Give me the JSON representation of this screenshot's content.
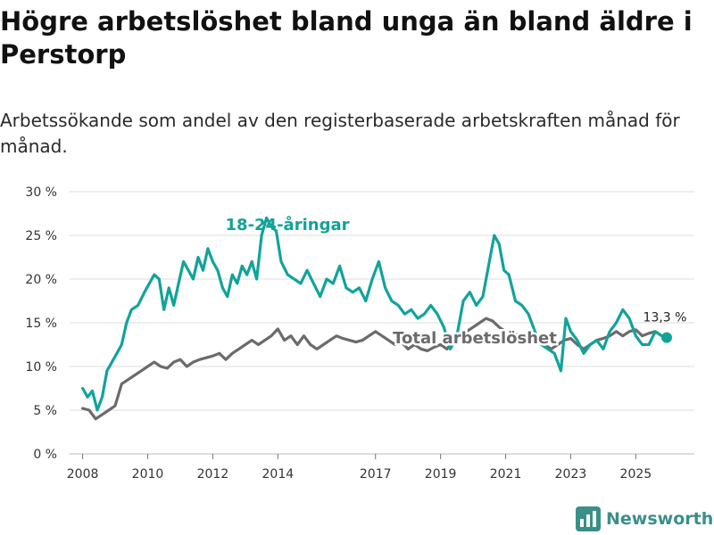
{
  "page": {
    "title": "Högre arbetslöshet bland unga än bland äldre i Perstorp",
    "subtitle": "Arbetssökande som andel av den registerbaserade arbetskraften månad för månad.",
    "brand": "Newsworthy"
  },
  "colors": {
    "youth": "#11a39a",
    "total": "#6b6b6b",
    "grid": "#dddddd",
    "brand": "#3b8f89"
  },
  "chart_data": {
    "type": "line",
    "title": "Högre arbetslöshet bland unga än bland äldre i Perstorp",
    "subtitle": "Arbetssökande som andel av den registerbaserade arbetskraften månad för månad.",
    "xlabel": "",
    "ylabel": "",
    "xlim": [
      2007.6,
      2026.8
    ],
    "ylim": [
      0,
      30
    ],
    "y_ticks": [
      0,
      5,
      10,
      15,
      20,
      25,
      30
    ],
    "y_tick_labels": [
      "0 %",
      "5 %",
      "10 %",
      "15 %",
      "20 %",
      "25 %",
      "30 %"
    ],
    "x_ticks": [
      2008,
      2010,
      2012,
      2014,
      2017,
      2019,
      2021,
      2023,
      2025
    ],
    "x_tick_labels": [
      "2008",
      "2010",
      "2012",
      "2014",
      "2017",
      "2019",
      "2021",
      "2023",
      "2025"
    ],
    "end_label": "13,3 %",
    "series": [
      {
        "name": "18-24-åringar",
        "x": [
          2008.0,
          2008.15,
          2008.3,
          2008.45,
          2008.6,
          2008.75,
          2008.9,
          2009.05,
          2009.2,
          2009.35,
          2009.5,
          2009.7,
          2009.9,
          2010.05,
          2010.2,
          2010.35,
          2010.5,
          2010.65,
          2010.8,
          2010.95,
          2011.1,
          2011.25,
          2011.4,
          2011.55,
          2011.7,
          2011.85,
          2012.0,
          2012.15,
          2012.3,
          2012.45,
          2012.6,
          2012.75,
          2012.9,
          2013.05,
          2013.2,
          2013.35,
          2013.5,
          2013.65,
          2013.8,
          2013.95,
          2014.1,
          2014.3,
          2014.5,
          2014.7,
          2014.9,
          2015.1,
          2015.3,
          2015.5,
          2015.7,
          2015.9,
          2016.1,
          2016.3,
          2016.5,
          2016.7,
          2016.9,
          2017.1,
          2017.3,
          2017.5,
          2017.7,
          2017.9,
          2018.1,
          2018.3,
          2018.5,
          2018.7,
          2018.9,
          2019.1,
          2019.3,
          2019.5,
          2019.7,
          2019.9,
          2020.1,
          2020.3,
          2020.5,
          2020.65,
          2020.8,
          2020.95,
          2021.1,
          2021.3,
          2021.5,
          2021.7,
          2021.9,
          2022.1,
          2022.3,
          2022.5,
          2022.7,
          2022.85,
          2023.0,
          2023.2,
          2023.4,
          2023.6,
          2023.8,
          2024.0,
          2024.2,
          2024.4,
          2024.6,
          2024.8,
          2025.0,
          2025.2,
          2025.4,
          2025.6,
          2025.8,
          2025.95
        ],
        "values": [
          7.5,
          6.5,
          7.2,
          5.0,
          6.5,
          9.5,
          10.5,
          11.5,
          12.5,
          15.0,
          16.5,
          17.0,
          18.5,
          19.5,
          20.5,
          20.0,
          16.5,
          19.0,
          17.0,
          19.5,
          22.0,
          21.0,
          20.0,
          22.5,
          21.0,
          23.5,
          22.0,
          21.0,
          19.0,
          18.0,
          20.5,
          19.5,
          21.5,
          20.5,
          22.0,
          20.0,
          25.0,
          27.0,
          26.0,
          25.5,
          22.0,
          20.5,
          20.0,
          19.5,
          21.0,
          19.5,
          18.0,
          20.0,
          19.5,
          21.5,
          19.0,
          18.5,
          19.0,
          17.5,
          20.0,
          22.0,
          19.0,
          17.5,
          17.0,
          16.0,
          16.5,
          15.5,
          16.0,
          17.0,
          16.0,
          14.5,
          12.0,
          13.5,
          17.5,
          18.5,
          17.0,
          18.0,
          22.0,
          25.0,
          24.0,
          21.0,
          20.5,
          17.5,
          17.0,
          16.0,
          14.0,
          12.5,
          12.0,
          11.5,
          9.5,
          15.5,
          14.0,
          13.0,
          11.5,
          12.5,
          13.0,
          12.0,
          14.0,
          15.0,
          16.5,
          15.5,
          13.5,
          12.5,
          12.5,
          14.0,
          13.5,
          13.3
        ]
      },
      {
        "name": "Total arbetslöshet",
        "x": [
          2008.0,
          2008.2,
          2008.4,
          2008.6,
          2008.8,
          2009.0,
          2009.2,
          2009.4,
          2009.6,
          2009.8,
          2010.0,
          2010.2,
          2010.4,
          2010.6,
          2010.8,
          2011.0,
          2011.2,
          2011.4,
          2011.6,
          2011.8,
          2012.0,
          2012.2,
          2012.4,
          2012.6,
          2012.8,
          2013.0,
          2013.2,
          2013.4,
          2013.6,
          2013.8,
          2014.0,
          2014.2,
          2014.4,
          2014.6,
          2014.8,
          2015.0,
          2015.2,
          2015.4,
          2015.6,
          2015.8,
          2016.0,
          2016.2,
          2016.4,
          2016.6,
          2016.8,
          2017.0,
          2017.2,
          2017.4,
          2017.6,
          2017.8,
          2018.0,
          2018.2,
          2018.4,
          2018.6,
          2018.8,
          2019.0,
          2019.2,
          2019.4,
          2019.6,
          2019.8,
          2020.0,
          2020.2,
          2020.4,
          2020.6,
          2020.8,
          2021.0,
          2021.2,
          2021.4,
          2021.6,
          2021.8,
          2022.0,
          2022.2,
          2022.4,
          2022.6,
          2022.8,
          2023.0,
          2023.2,
          2023.4,
          2023.6,
          2023.8,
          2024.0,
          2024.2,
          2024.4,
          2024.6,
          2024.8,
          2025.0,
          2025.2,
          2025.4,
          2025.6,
          2025.8,
          2025.95
        ],
        "values": [
          5.2,
          5.0,
          4.0,
          4.5,
          5.0,
          5.5,
          8.0,
          8.5,
          9.0,
          9.5,
          10.0,
          10.5,
          10.0,
          9.8,
          10.5,
          10.8,
          10.0,
          10.5,
          10.8,
          11.0,
          11.2,
          11.5,
          10.8,
          11.5,
          12.0,
          12.5,
          13.0,
          12.5,
          13.0,
          13.5,
          14.3,
          13.0,
          13.5,
          12.5,
          13.5,
          12.5,
          12.0,
          12.5,
          13.0,
          13.5,
          13.2,
          13.0,
          12.8,
          13.0,
          13.5,
          14.0,
          13.5,
          13.0,
          12.5,
          12.8,
          12.0,
          12.5,
          12.0,
          11.8,
          12.2,
          12.5,
          12.0,
          13.0,
          13.5,
          14.0,
          14.5,
          15.0,
          15.5,
          15.2,
          14.5,
          14.0,
          14.0,
          13.5,
          13.0,
          13.5,
          13.0,
          12.5,
          12.0,
          12.5,
          13.0,
          13.2,
          12.5,
          12.0,
          12.5,
          13.0,
          13.2,
          13.5,
          14.0,
          13.5,
          14.0,
          14.2,
          13.5,
          13.8,
          14.0,
          13.5,
          13.3
        ]
      }
    ]
  }
}
